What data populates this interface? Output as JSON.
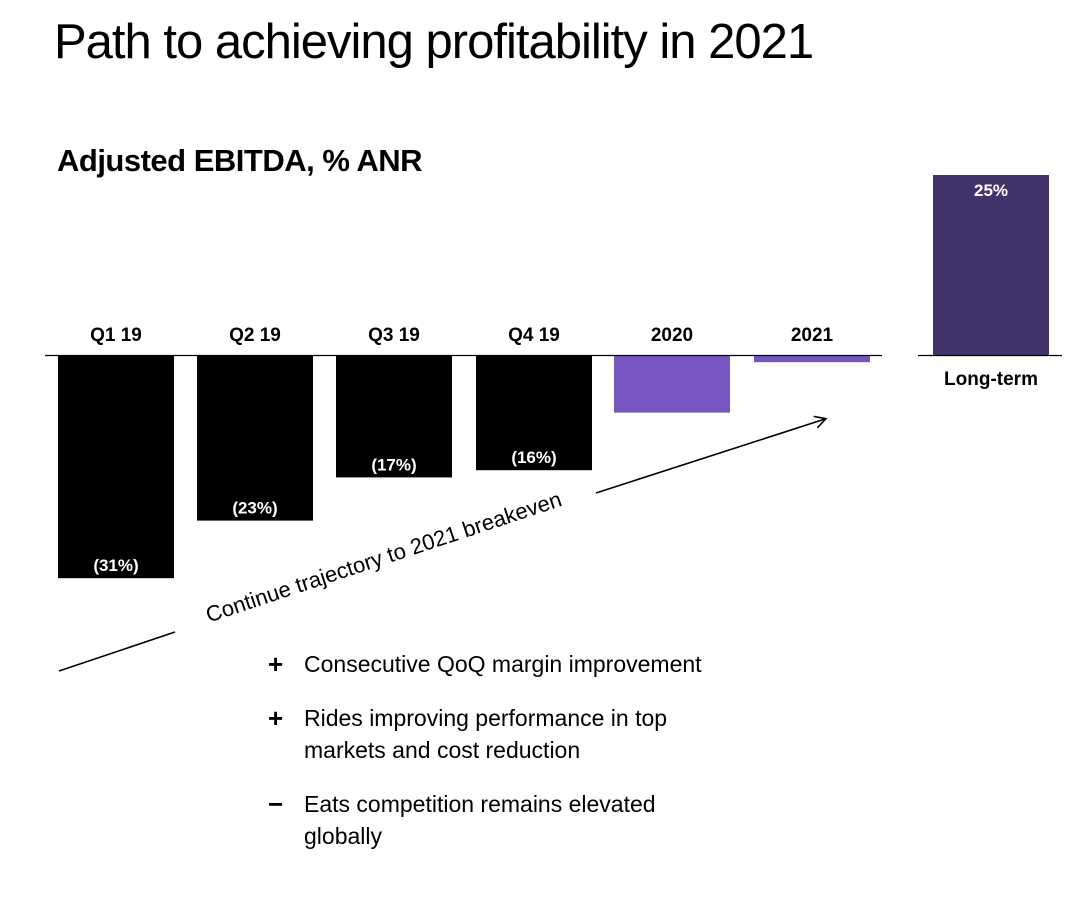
{
  "title": "Path to achieving profitability in 2021",
  "chart_data": {
    "type": "bar",
    "title": "Adjusted EBITDA, % ANR",
    "categories": [
      "Q1 19",
      "Q2 19",
      "Q3 19",
      "Q4 19",
      "2020",
      "2021",
      "Long-term"
    ],
    "values": [
      -31,
      -23,
      -17,
      -16,
      -8,
      -1,
      25
    ],
    "data_labels": [
      "(31%)",
      "(23%)",
      "(17%)",
      "(16%)",
      "",
      "",
      "25%"
    ],
    "bar_colors": [
      "#000000",
      "#000000",
      "#000000",
      "#000000",
      "#7856c2",
      "#7856c2",
      "#43336b"
    ],
    "label_color": "#ffffff",
    "baseline": 0,
    "ylim": [
      -31,
      25
    ],
    "grid": false,
    "legend": "none",
    "annotation": "Continue trajectory to 2021 breakeven"
  },
  "bullets": [
    {
      "sign": "+",
      "text": "Consecutive QoQ margin improvement"
    },
    {
      "sign": "+",
      "text": "Rides improving performance in top markets and cost reduction"
    },
    {
      "sign": "−",
      "text": "Eats competition remains elevated globally"
    }
  ]
}
